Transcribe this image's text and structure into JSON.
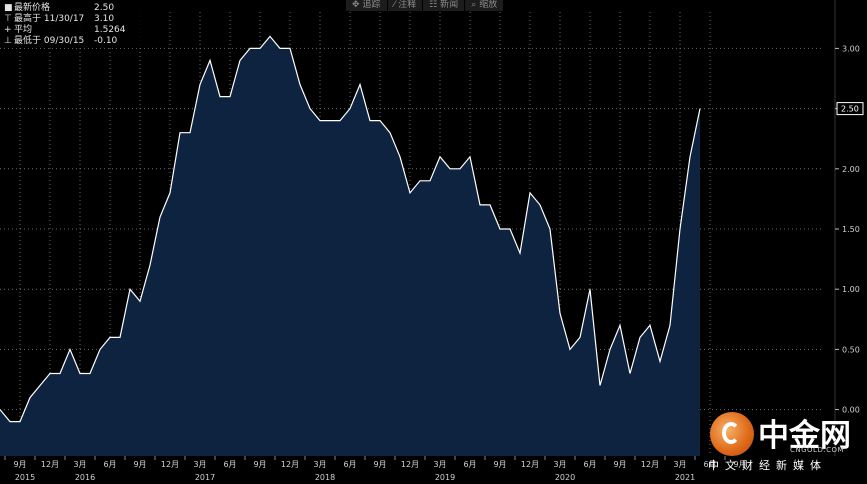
{
  "legend": {
    "items": [
      {
        "marker": "■",
        "name": "最新价格",
        "value": "2.50"
      },
      {
        "marker": "⊤",
        "name": "最高于 11/30/17",
        "value": "3.10"
      },
      {
        "marker": "+",
        "name": "平均",
        "value": "1.5264"
      },
      {
        "marker": "⊥",
        "name": "最低于 09/30/15",
        "value": "-0.10"
      }
    ]
  },
  "toolbar": {
    "items": [
      {
        "icon": "crosshair-icon",
        "glyph": "✥",
        "label": "追踪"
      },
      {
        "icon": "annotate-icon",
        "glyph": "⁄",
        "label": "注释"
      },
      {
        "icon": "news-icon",
        "glyph": "☷",
        "label": "新闻"
      },
      {
        "icon": "zoom-icon",
        "glyph": "⌕",
        "label": "缩放"
      }
    ]
  },
  "watermark": {
    "brand": "中金网",
    "domain": "CNGOLD.COM",
    "slogan": "中文财经新媒体"
  },
  "chart_data": {
    "type": "area",
    "x_start": "2015-09",
    "x_frequency": "monthly",
    "values": [
      0.0,
      -0.1,
      -0.1,
      0.1,
      0.2,
      0.3,
      0.3,
      0.5,
      0.3,
      0.3,
      0.5,
      0.6,
      0.6,
      1.0,
      0.9,
      1.2,
      1.6,
      1.8,
      2.3,
      2.3,
      2.7,
      2.9,
      2.6,
      2.6,
      2.9,
      3.0,
      3.0,
      3.1,
      3.0,
      3.0,
      2.7,
      2.5,
      2.4,
      2.4,
      2.4,
      2.5,
      2.7,
      2.4,
      2.4,
      2.3,
      2.1,
      1.8,
      1.9,
      1.9,
      2.1,
      2.0,
      2.0,
      2.1,
      1.7,
      1.7,
      1.5,
      1.5,
      1.3,
      1.8,
      1.7,
      1.5,
      0.8,
      0.5,
      0.6,
      1.0,
      0.2,
      0.5,
      0.7,
      0.3,
      0.6,
      0.7,
      0.4,
      0.7,
      1.5,
      2.1,
      2.5
    ],
    "ylim": [
      -0.2,
      3.3
    ],
    "y_ticks": [
      "3.00",
      "2.50",
      "2.00",
      "1.50",
      "1.00",
      "0.50",
      "0.00"
    ],
    "last_value_label": "2.50",
    "month_labels": [
      "9月",
      "12月",
      "3月",
      "6月"
    ],
    "year_labels": [
      {
        "label": "2015",
        "x_index": 0
      },
      {
        "label": "2016",
        "x_index": 6
      },
      {
        "label": "2017",
        "x_index": 18
      },
      {
        "label": "2018",
        "x_index": 30
      },
      {
        "label": "2019",
        "x_index": 42
      },
      {
        "label": "2020",
        "x_index": 54
      },
      {
        "label": "2021",
        "x_index": 66
      }
    ],
    "fill_color": "#0e2340",
    "line_color": "#ffffff",
    "grid": true
  }
}
